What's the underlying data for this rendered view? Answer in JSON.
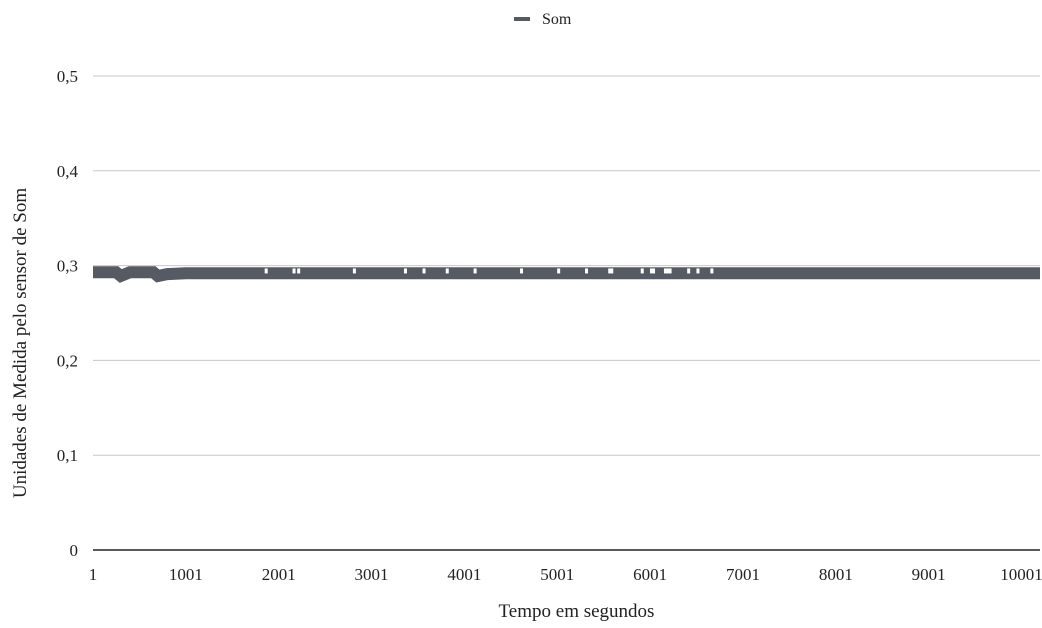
{
  "chart_data": {
    "type": "line",
    "title": "",
    "xlabel": "Tempo em segundos",
    "ylabel": "Unidades de Medida pelo sensor de Som",
    "ylim": [
      0,
      0.5
    ],
    "y_ticks": [
      "0",
      "0,1",
      "0,2",
      "0,3",
      "0,4",
      "0,5"
    ],
    "x_ticks": [
      "1",
      "1001",
      "2001",
      "3001",
      "4001",
      "5001",
      "6001",
      "7001",
      "8001",
      "9001",
      "10001"
    ],
    "xlim": [
      1,
      10200
    ],
    "grid": true,
    "legend_position": "top-center",
    "series": [
      {
        "name": "Som",
        "color": "#555a63",
        "x": [
          1,
          250,
          300,
          400,
          650,
          700,
          800,
          1000,
          1200,
          2000,
          4000,
          6000,
          8000,
          10200
        ],
        "values": [
          0.293,
          0.293,
          0.289,
          0.293,
          0.293,
          0.289,
          0.291,
          0.292,
          0.292,
          0.292,
          0.292,
          0.292,
          0.292,
          0.292
        ]
      }
    ]
  }
}
